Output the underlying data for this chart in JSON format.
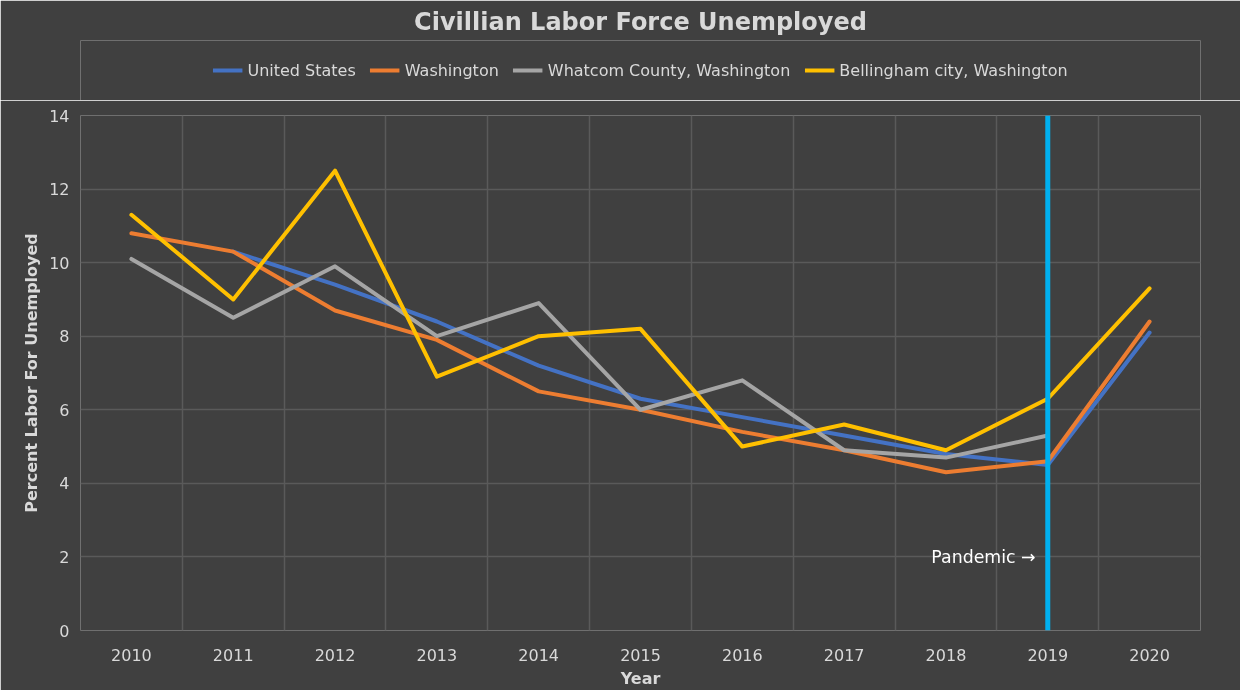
{
  "chart_data": {
    "type": "line",
    "title": "Civillian Labor Force Unemployed",
    "xlabel": "Year",
    "ylabel": "Percent Labor For Unemployed",
    "categories": [
      "2010",
      "2011",
      "2012",
      "2013",
      "2014",
      "2015",
      "2016",
      "2017",
      "2018",
      "2019",
      "2020"
    ],
    "series": [
      {
        "name": "United States",
        "color": "#4472c4",
        "values": [
          null,
          10.3,
          9.4,
          8.4,
          7.2,
          6.3,
          5.8,
          5.3,
          4.8,
          4.5,
          8.1
        ]
      },
      {
        "name": "Washington",
        "color": "#ed7d31",
        "values": [
          10.8,
          10.3,
          8.7,
          7.9,
          6.5,
          6.0,
          5.4,
          4.9,
          4.3,
          4.6,
          8.4
        ]
      },
      {
        "name": "Whatcom County, Washington",
        "color": "#a5a5a5",
        "values": [
          10.1,
          8.5,
          9.9,
          8.0,
          8.9,
          6.0,
          6.8,
          4.9,
          4.7,
          5.3,
          null
        ]
      },
      {
        "name": "Bellingham city, Washington",
        "color": "#ffc000",
        "values": [
          11.3,
          9.0,
          12.5,
          6.9,
          8.0,
          8.2,
          5.0,
          5.6,
          4.9,
          6.3,
          9.3
        ]
      }
    ],
    "ylim": [
      0,
      14
    ],
    "yticks": [
      0,
      2,
      4,
      6,
      8,
      10,
      12,
      14
    ],
    "grid": true,
    "legend": "top",
    "line_style": "solid",
    "marker": "none",
    "ref_lines": [
      {
        "axis": "x",
        "value": "2019",
        "label": "Pandemic →",
        "color": "#00b0f0"
      }
    ]
  }
}
